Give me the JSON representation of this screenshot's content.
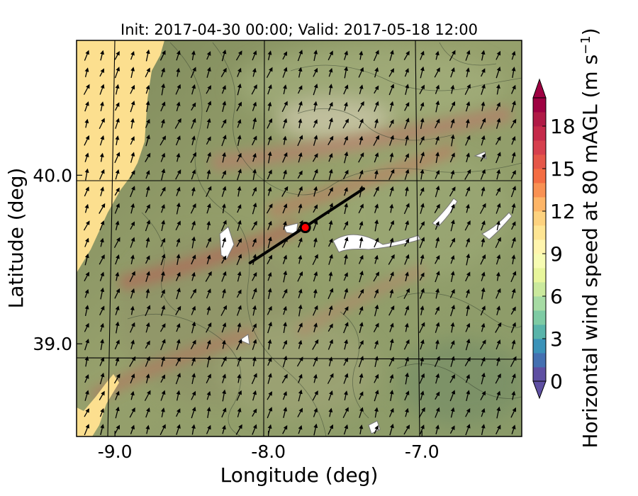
{
  "chart_data": {
    "type": "heatmap",
    "title": "Init: 2017-04-30 00:00; Valid: 2017-05-18 12:00",
    "xlabel": "Longitude (deg)",
    "ylabel": "Latitude (deg)",
    "xlim": [
      -9.25,
      -6.35
    ],
    "ylim": [
      38.45,
      40.8
    ],
    "xticks": [
      -9.0,
      -8.0,
      -7.0
    ],
    "xtick_labels": [
      "-9.0",
      "-8.0",
      "-7.0"
    ],
    "yticks": [
      39.0,
      40.0
    ],
    "ytick_labels": [
      "39.0",
      "40.0"
    ],
    "grid": true,
    "colorbar": {
      "label": "Horizontal wind speed at 80 mAGL (m s",
      "label_sup": "−1",
      "label_end": ")",
      "min": 0,
      "max": 20,
      "extend": "both",
      "ticks": [
        0,
        3,
        6,
        9,
        12,
        15,
        18
      ],
      "tick_labels": [
        "0",
        "3",
        "6",
        "9",
        "12",
        "15",
        "18"
      ],
      "colors": [
        "#5e4fa2",
        "#4470b1",
        "#3b92b8",
        "#59b4aa",
        "#7ecba4",
        "#a6dba4",
        "#cae99d",
        "#e8f69c",
        "#f7fcb3",
        "#fff5ae",
        "#fee593",
        "#fdd27f",
        "#fdb567",
        "#f99153",
        "#f46d43",
        "#e55749",
        "#d6404e",
        "#c52a4a",
        "#b01a46",
        "#9e0142"
      ]
    },
    "transect": {
      "start": [
        -8.12,
        39.48
      ],
      "end": [
        -7.38,
        39.92
      ]
    },
    "marker": {
      "lon": -7.76,
      "lat": 39.69,
      "face_color": "#ff0000",
      "edge_color": "#000000"
    },
    "wind_vectors": {
      "mean_direction_deg_from_north": 160,
      "color": "#000000"
    },
    "colors": {
      "ocean": "#fcdf8f",
      "land_base": "#8f9a67",
      "ridge": "#b87f62",
      "water_bodies": "#ffffff"
    }
  }
}
